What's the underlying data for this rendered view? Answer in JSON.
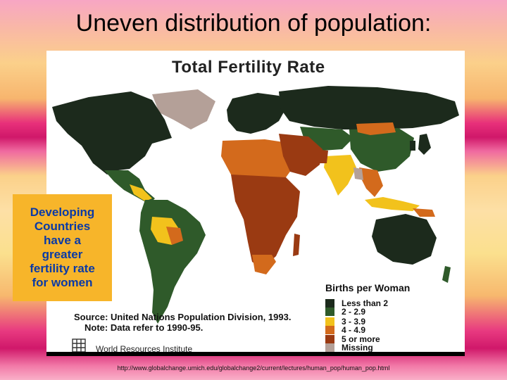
{
  "slide": {
    "title": "Uneven distribution of population:",
    "callout": [
      "Developing",
      "Countries",
      "have a",
      "greater",
      "fertility rate",
      "for women"
    ],
    "url": "http://www.globalchange.umich.edu/globalchange2/current/lectures/human_pop/human_pop.html"
  },
  "map": {
    "title": "Total Fertility Rate",
    "source": "Source: United Nations Population Division, 1993.",
    "note": "Note: Data refer to 1990-95.",
    "publisher": "World Resources Institute",
    "legend_title": "Births per Woman",
    "legend": [
      {
        "label": "Less than 2",
        "color": "#1c2a1c"
      },
      {
        "label": "2 - 2.9",
        "color": "#2f5a2a"
      },
      {
        "label": "3 - 3.9",
        "color": "#f2c21c"
      },
      {
        "label": "4 - 4.9",
        "color": "#d36a1c"
      },
      {
        "label": "5 or more",
        "color": "#9a3a12"
      },
      {
        "label": "Missing",
        "color": "#b4a098"
      }
    ]
  }
}
